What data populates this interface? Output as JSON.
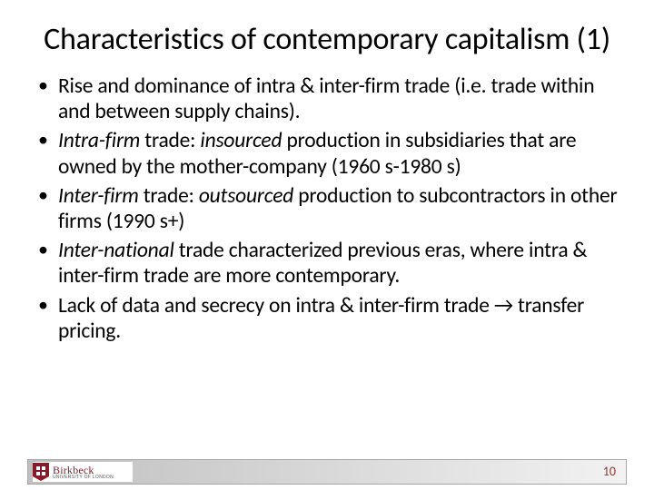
{
  "slide": {
    "title": "Characteristics of contemporary capitalism (1)",
    "title_fontsize": 34,
    "title_color": "#000000",
    "body_fontsize": 23.5,
    "body_color": "#000000",
    "background_color": "#ffffff",
    "bullets": [
      {
        "segments": [
          {
            "text": "Rise and dominance of intra & inter-firm trade (i.e. trade within and between supply chains).",
            "italic": false
          }
        ]
      },
      {
        "segments": [
          {
            "text": "Intra-firm",
            "italic": true
          },
          {
            "text": " trade: ",
            "italic": false
          },
          {
            "text": "insourced",
            "italic": true
          },
          {
            "text": " production in subsidiaries that are owned by the mother-company (1960 s-1980 s)",
            "italic": false
          }
        ]
      },
      {
        "segments": [
          {
            "text": "Inter-firm",
            "italic": true
          },
          {
            "text": " trade: ",
            "italic": false
          },
          {
            "text": "outsourced",
            "italic": true
          },
          {
            "text": " production to subcontractors in other firms (1990 s+)",
            "italic": false
          }
        ]
      },
      {
        "segments": [
          {
            "text": "Inter-national",
            "italic": true
          },
          {
            "text": " trade characterized previous eras, where intra & inter-firm trade are more contemporary.",
            "italic": false
          }
        ]
      },
      {
        "segments": [
          {
            "text": "Lack of data and secrecy on intra & inter-firm trade → transfer pricing.",
            "italic": false
          }
        ]
      }
    ]
  },
  "footer": {
    "logo_main": "Birkbeck",
    "logo_sub": "UNIVERSITY OF LONDON",
    "logo_color": "#851c2b",
    "page_number": "10",
    "page_number_color": "#8b3a2f",
    "bar_border_color": "#a6a6a6",
    "bar_gradient_from": "#bfbfbf",
    "bar_gradient_to": "#f2f2f2"
  }
}
